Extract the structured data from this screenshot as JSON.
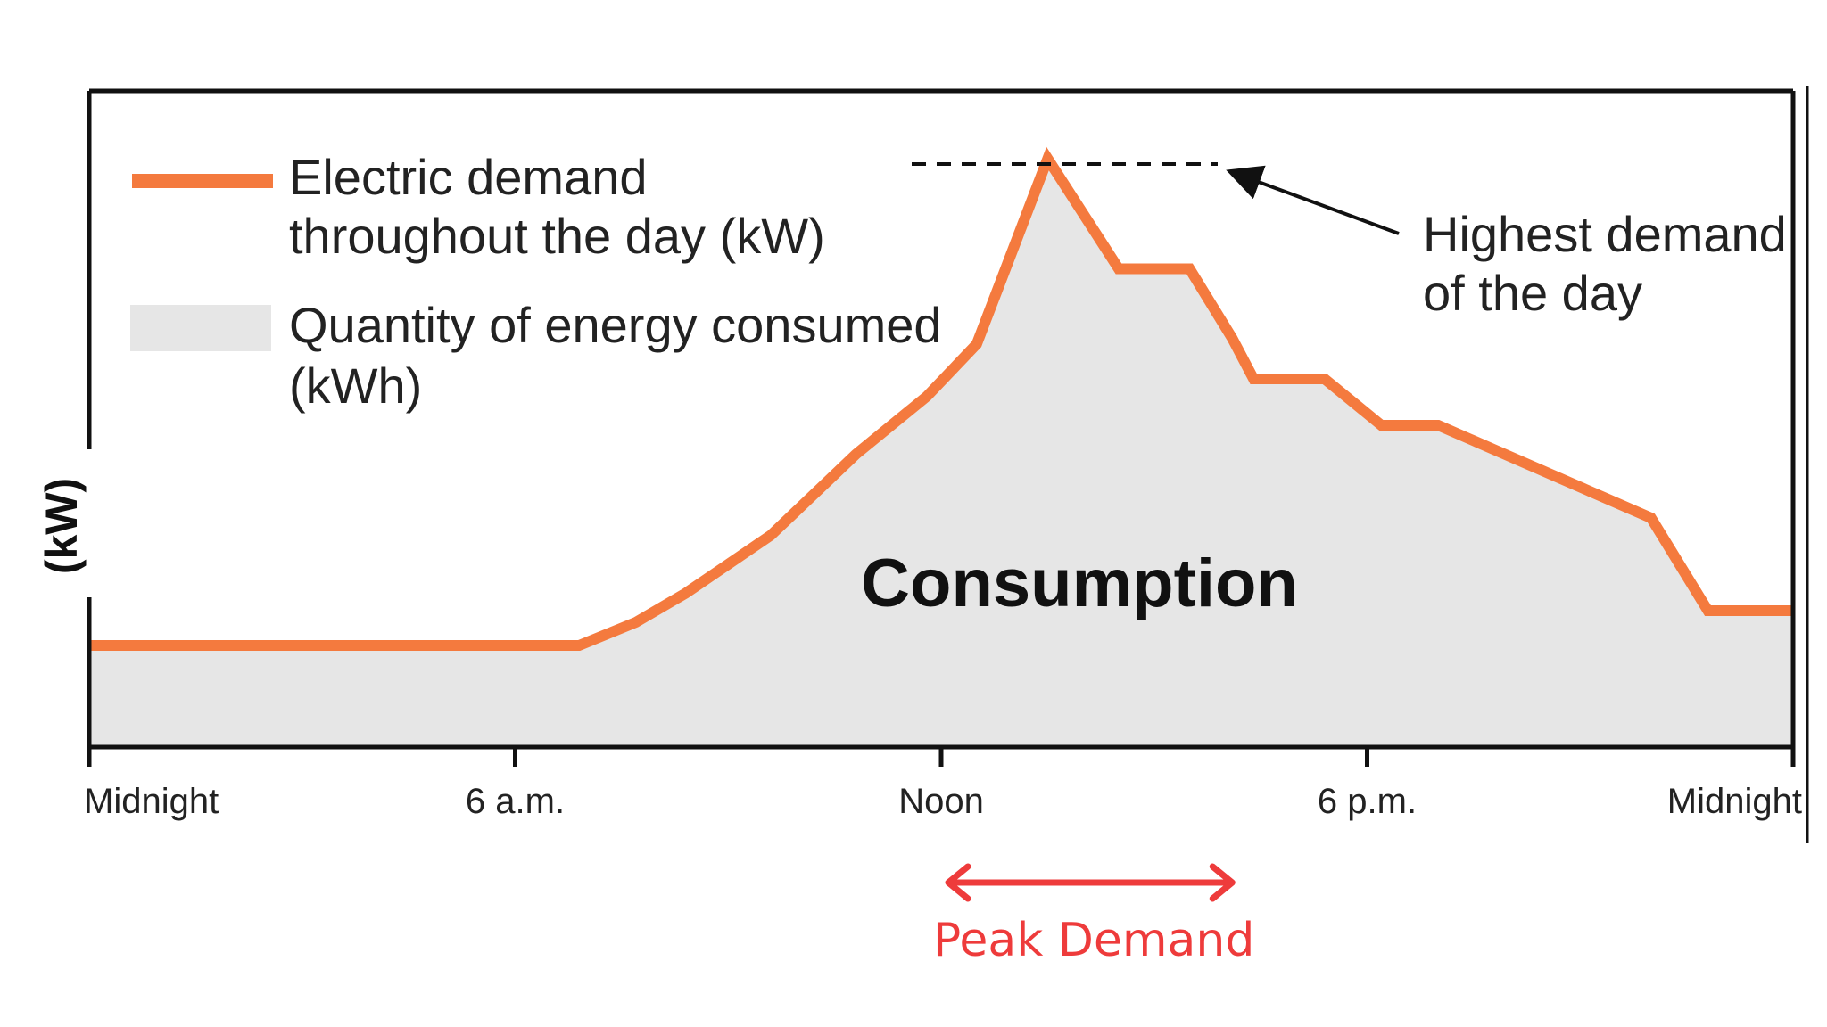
{
  "chart_data": {
    "type": "area",
    "title": "",
    "xlabel": "",
    "ylabel": "(kW)",
    "x_unit": "hour of day",
    "xlim": [
      0,
      24
    ],
    "ylim": [
      0,
      100
    ],
    "x_ticks": [
      {
        "value": 0,
        "label": "Midnight"
      },
      {
        "value": 6,
        "label": "6 a.m."
      },
      {
        "value": 12,
        "label": "Noon"
      },
      {
        "value": 18,
        "label": "6 p.m."
      },
      {
        "value": 24,
        "label": "Midnight"
      }
    ],
    "series": [
      {
        "name": "Electric demand throughout the day (kW)",
        "x": [
          0,
          6.9,
          7.7,
          8.4,
          9.6,
          10.8,
          11.8,
          12.5,
          13.5,
          14.5,
          15.5,
          16.1,
          16.4,
          17.4,
          18.2,
          19.0,
          22.0,
          22.8,
          24.0
        ],
        "values": [
          16,
          16,
          20,
          25,
          35,
          49,
          59,
          68,
          100,
          81,
          81,
          69,
          62,
          62,
          54,
          54,
          38,
          22,
          22
        ]
      }
    ],
    "legend": [
      {
        "label_lines": [
          "Electric demand",
          "throughout the day (kW)"
        ],
        "kind": "line",
        "color": "#f47a3e"
      },
      {
        "label_lines": [
          "Quantity of energy consumed",
          "(kWh)"
        ],
        "kind": "fill",
        "color": "#e6e6e6"
      }
    ],
    "annotations": {
      "area_label": "Consumption",
      "peak_label_lines": [
        "Highest demand",
        "of the day"
      ],
      "peak_range": {
        "start": 12,
        "end": 16.2,
        "label": "Peak Demand"
      }
    },
    "colors": {
      "line": "#f47a3e",
      "fill": "#e6e6e6",
      "frame": "#111111",
      "peak_range": "#ee3b3b"
    }
  }
}
